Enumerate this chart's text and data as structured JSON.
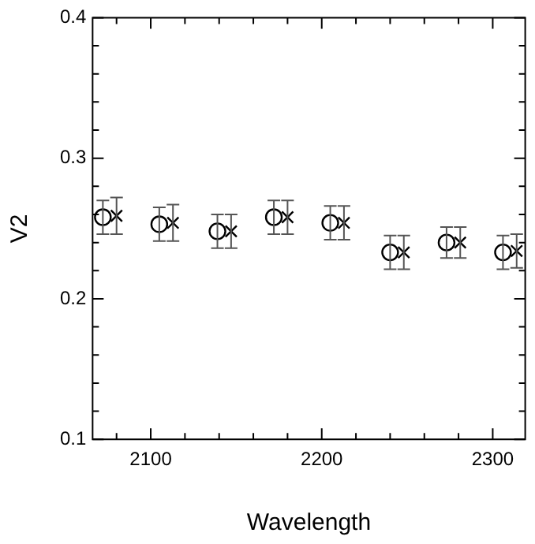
{
  "chart_data": {
    "type": "scatter",
    "xlabel": "Wavelength",
    "ylabel": "V2",
    "xlim": [
      2066,
      2319
    ],
    "ylim": [
      0.1,
      0.4
    ],
    "xticks": [
      {
        "value": 2080,
        "label": null
      },
      2100,
      {
        "value": 2120,
        "label": null
      },
      {
        "value": 2140,
        "label": null
      },
      {
        "value": 2160,
        "label": null
      },
      {
        "value": 2180,
        "label": null
      },
      2200,
      {
        "value": 2220,
        "label": null
      },
      {
        "value": 2240,
        "label": null
      },
      {
        "value": 2260,
        "label": null
      },
      {
        "value": 2280,
        "label": null
      },
      2300
    ],
    "yticks": [
      0.1,
      {
        "value": 0.12,
        "label": null
      },
      {
        "value": 0.14,
        "label": null
      },
      {
        "value": 0.16,
        "label": null
      },
      {
        "value": 0.18,
        "label": null
      },
      0.2,
      {
        "value": 0.22,
        "label": null
      },
      {
        "value": 0.24,
        "label": null
      },
      {
        "value": 0.26,
        "label": null
      },
      {
        "value": 0.28,
        "label": null
      },
      0.3,
      {
        "value": 0.32,
        "label": null
      },
      {
        "value": 0.34,
        "label": null
      },
      {
        "value": 0.36,
        "label": null
      },
      {
        "value": 0.38,
        "label": null
      },
      0.4
    ],
    "grid": false,
    "series": [
      {
        "color": "#000000",
        "marker": "circle",
        "x": [
          2072,
          2105,
          2139,
          2172,
          2205,
          2240,
          2273,
          2306
        ],
        "values": [
          0.258,
          0.253,
          0.248,
          0.258,
          0.254,
          0.233,
          0.24,
          0.233
        ],
        "errors": [
          0.012,
          0.012,
          0.012,
          0.012,
          0.012,
          0.012,
          0.011,
          0.012
        ]
      },
      {
        "color": "#000000",
        "marker": "cross",
        "x": [
          2080,
          2113,
          2147,
          2180,
          2213,
          2248,
          2281,
          2314
        ],
        "values": [
          0.259,
          0.254,
          0.248,
          0.258,
          0.254,
          0.233,
          0.24,
          0.234
        ],
        "errors": [
          0.013,
          0.013,
          0.012,
          0.012,
          0.012,
          0.012,
          0.011,
          0.012
        ]
      }
    ]
  }
}
